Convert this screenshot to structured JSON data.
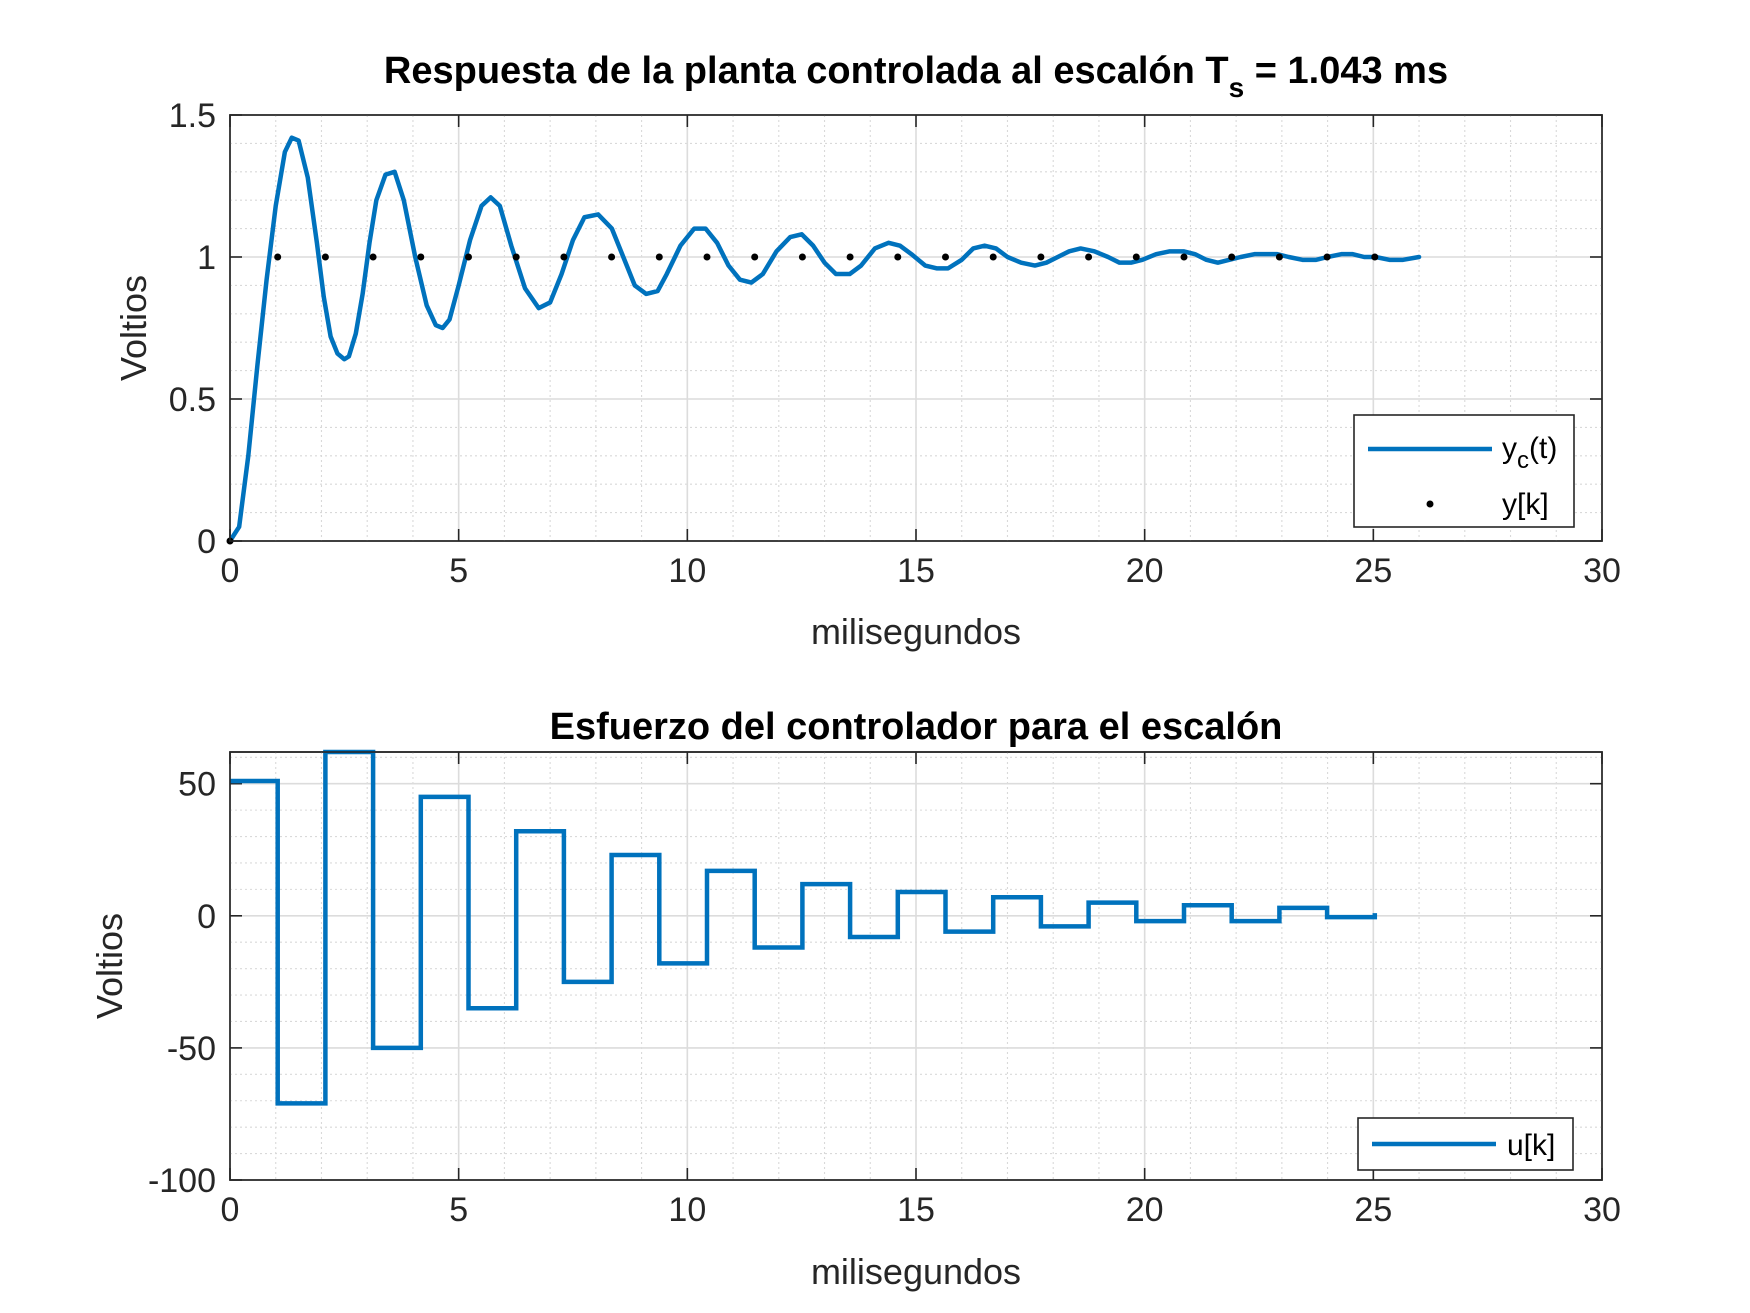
{
  "chart_data": [
    {
      "type": "line",
      "title": "Respuesta de la planta controlada al escalón",
      "title_parts": {
        "main": "Respuesta de la planta controlada al escalón ",
        "sym": "T",
        "sub": "s",
        "rest": " = 1.043 ms"
      },
      "xlabel": "milisegundos",
      "ylabel": "Voltios",
      "xlim": [
        0,
        30
      ],
      "ylim": [
        0,
        1.5
      ],
      "xticks": [
        "0",
        "5",
        "10",
        "15",
        "20",
        "25",
        "30"
      ],
      "yticks": [
        "0",
        "0.5",
        "1",
        "1.5"
      ],
      "xtick_values": [
        0,
        5,
        10,
        15,
        20,
        25,
        30
      ],
      "ytick_values": [
        0,
        0.5,
        1,
        1.5
      ],
      "grid": true,
      "minor_grid": true,
      "legend_position": "bottom-right",
      "series": [
        {
          "name": "yc(t)",
          "legend_main": "y",
          "legend_sub": "c",
          "legend_rest": "(t)",
          "style": "line",
          "color": "#0072BD",
          "x": [
            0,
            0.2,
            0.4,
            0.6,
            0.8,
            1.0,
            1.2,
            1.35,
            1.5,
            1.7,
            1.9,
            2.05,
            2.2,
            2.35,
            2.5,
            2.6,
            2.75,
            2.9,
            3.05,
            3.2,
            3.4,
            3.6,
            3.8,
            4.05,
            4.3,
            4.5,
            4.65,
            4.8,
            5.0,
            5.25,
            5.5,
            5.7,
            5.9,
            6.15,
            6.45,
            6.75,
            7.0,
            7.25,
            7.5,
            7.75,
            8.05,
            8.35,
            8.6,
            8.85,
            9.1,
            9.35,
            9.55,
            9.85,
            10.15,
            10.4,
            10.65,
            10.9,
            11.15,
            11.4,
            11.65,
            11.95,
            12.25,
            12.5,
            12.75,
            13.0,
            13.25,
            13.55,
            13.8,
            14.1,
            14.4,
            14.65,
            14.9,
            15.2,
            15.45,
            15.7,
            16.0,
            16.25,
            16.5,
            16.75,
            17.0,
            17.3,
            17.6,
            17.85,
            18.1,
            18.35,
            18.6,
            18.9,
            19.2,
            19.45,
            19.7,
            19.95,
            20.25,
            20.55,
            20.85,
            21.1,
            21.35,
            21.6,
            21.85,
            22.1,
            22.4,
            22.65,
            22.9,
            23.15,
            23.45,
            23.75,
            24.0,
            24.3,
            24.55,
            24.8,
            25.05,
            25.35,
            25.65,
            26.0
          ],
          "y": [
            0,
            0.05,
            0.3,
            0.62,
            0.92,
            1.18,
            1.37,
            1.42,
            1.41,
            1.28,
            1.05,
            0.86,
            0.72,
            0.66,
            0.64,
            0.65,
            0.73,
            0.87,
            1.05,
            1.2,
            1.29,
            1.3,
            1.2,
            1.0,
            0.83,
            0.76,
            0.75,
            0.78,
            0.9,
            1.06,
            1.18,
            1.21,
            1.18,
            1.04,
            0.89,
            0.82,
            0.84,
            0.94,
            1.06,
            1.14,
            1.15,
            1.1,
            1.0,
            0.9,
            0.87,
            0.88,
            0.94,
            1.04,
            1.1,
            1.1,
            1.05,
            0.97,
            0.92,
            0.91,
            0.94,
            1.02,
            1.07,
            1.08,
            1.04,
            0.98,
            0.94,
            0.94,
            0.97,
            1.03,
            1.05,
            1.04,
            1.01,
            0.97,
            0.96,
            0.96,
            0.99,
            1.03,
            1.04,
            1.03,
            1.0,
            0.98,
            0.97,
            0.98,
            1.0,
            1.02,
            1.03,
            1.02,
            1.0,
            0.98,
            0.98,
            0.99,
            1.01,
            1.02,
            1.02,
            1.01,
            0.99,
            0.98,
            0.99,
            1.0,
            1.01,
            1.01,
            1.01,
            1.0,
            0.99,
            0.99,
            1.0,
            1.01,
            1.01,
            1.0,
            1.0,
            0.99,
            0.99,
            1.0
          ]
        },
        {
          "name": "y[k]",
          "style": "markers",
          "color": "#000000",
          "x": [
            0,
            1.043,
            2.086,
            3.129,
            4.172,
            5.215,
            6.258,
            7.301,
            8.344,
            9.387,
            10.43,
            11.473,
            12.516,
            13.559,
            14.602,
            15.645,
            16.688,
            17.731,
            18.774,
            19.817,
            20.86,
            21.903,
            22.946,
            23.989,
            25.032
          ],
          "y": [
            0,
            1,
            1,
            1,
            1,
            1,
            1,
            1,
            1,
            1,
            1,
            1,
            1,
            1,
            1,
            1,
            1,
            1,
            1,
            1,
            1,
            1,
            1,
            1,
            1
          ]
        }
      ]
    },
    {
      "type": "line",
      "title": "Esfuerzo del controlador para el escalón",
      "xlabel": "milisegundos",
      "ylabel": "Voltios",
      "xlim": [
        0,
        30
      ],
      "ylim": [
        -100,
        62
      ],
      "xticks": [
        "0",
        "5",
        "10",
        "15",
        "20",
        "25",
        "30"
      ],
      "yticks": [
        "-100",
        "-50",
        "0",
        "50"
      ],
      "xtick_values": [
        0,
        5,
        10,
        15,
        20,
        25,
        30
      ],
      "ytick_values": [
        -100,
        -50,
        0,
        50
      ],
      "grid": true,
      "minor_grid": true,
      "legend_position": "bottom-right",
      "series": [
        {
          "name": "u[k]",
          "style": "stairs",
          "color": "#0072BD",
          "x": [
            0,
            1.043,
            2.086,
            3.129,
            4.172,
            5.215,
            6.258,
            7.301,
            8.344,
            9.387,
            10.43,
            11.473,
            12.516,
            13.559,
            14.602,
            15.645,
            16.688,
            17.731,
            18.774,
            19.817,
            20.86,
            21.903,
            22.946,
            23.989,
            25.032
          ],
          "values": [
            51,
            -71,
            62,
            -50,
            45,
            -35,
            32,
            -25,
            23,
            -18,
            17,
            -12,
            12,
            -8,
            9,
            -6,
            7,
            -4,
            5,
            -2,
            4,
            -2,
            3,
            -0.5,
            1
          ]
        }
      ]
    }
  ]
}
